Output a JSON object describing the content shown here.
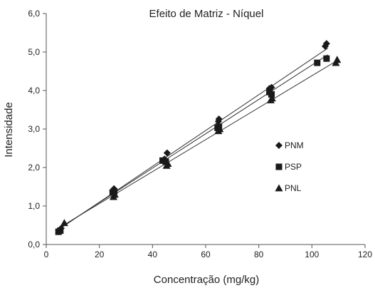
{
  "chart_data": {
    "type": "scatter",
    "title": "Efeito de Matriz - Níquel",
    "xlabel": "Concentração (mg/kg)",
    "ylabel": "Intensidade",
    "xlim": [
      0,
      120
    ],
    "ylim": [
      0,
      6
    ],
    "x_ticks": [
      0,
      20,
      40,
      60,
      80,
      100,
      120
    ],
    "y_ticks": [
      0,
      1,
      2,
      3,
      4,
      5,
      6
    ],
    "x_tick_labels": [
      "0",
      "20",
      "40",
      "60",
      "80",
      "100",
      "120"
    ],
    "y_tick_labels": [
      "0,0",
      "1,0",
      "2,0",
      "3,0",
      "4,0",
      "5,0",
      "6,0"
    ],
    "grid": false,
    "legend_position": "right",
    "trendlines": true,
    "series": [
      {
        "name": "PNM",
        "marker": "diamond",
        "color": "#1a1a1a",
        "points": [
          [
            5.0,
            0.38
          ],
          [
            5.6,
            0.42
          ],
          [
            25.0,
            1.4
          ],
          [
            25.5,
            1.45
          ],
          [
            44.5,
            2.22
          ],
          [
            45.5,
            2.38
          ],
          [
            64.8,
            3.2
          ],
          [
            65.0,
            3.26
          ],
          [
            84.0,
            4.05
          ],
          [
            84.8,
            4.08
          ],
          [
            105.0,
            5.15
          ],
          [
            105.5,
            5.22
          ]
        ],
        "trend": [
          [
            4.5,
            0.38
          ],
          [
            106.0,
            5.1
          ]
        ]
      },
      {
        "name": "PSP",
        "marker": "square",
        "color": "#1a1a1a",
        "points": [
          [
            4.6,
            0.33
          ],
          [
            5.3,
            0.36
          ],
          [
            25.0,
            1.35
          ],
          [
            25.6,
            1.38
          ],
          [
            43.8,
            2.18
          ],
          [
            45.0,
            2.15
          ],
          [
            64.5,
            3.03
          ],
          [
            65.0,
            3.06
          ],
          [
            84.0,
            3.96
          ],
          [
            84.8,
            3.9
          ],
          [
            102.0,
            4.72
          ],
          [
            105.5,
            4.83
          ]
        ],
        "trend": [
          [
            4.5,
            0.4
          ],
          [
            106.0,
            4.93
          ]
        ]
      },
      {
        "name": "PNL",
        "marker": "triangle",
        "color": "#1a1a1a",
        "points": [
          [
            6.8,
            0.56
          ],
          [
            25.3,
            1.24
          ],
          [
            25.8,
            1.3
          ],
          [
            45.3,
            2.05
          ],
          [
            45.8,
            2.1
          ],
          [
            64.8,
            2.95
          ],
          [
            65.3,
            3.0
          ],
          [
            84.5,
            3.75
          ],
          [
            85.0,
            3.8
          ],
          [
            109.0,
            4.72
          ],
          [
            109.5,
            4.8
          ]
        ],
        "trend": [
          [
            4.5,
            0.42
          ],
          [
            110.0,
            4.8
          ]
        ]
      }
    ]
  }
}
